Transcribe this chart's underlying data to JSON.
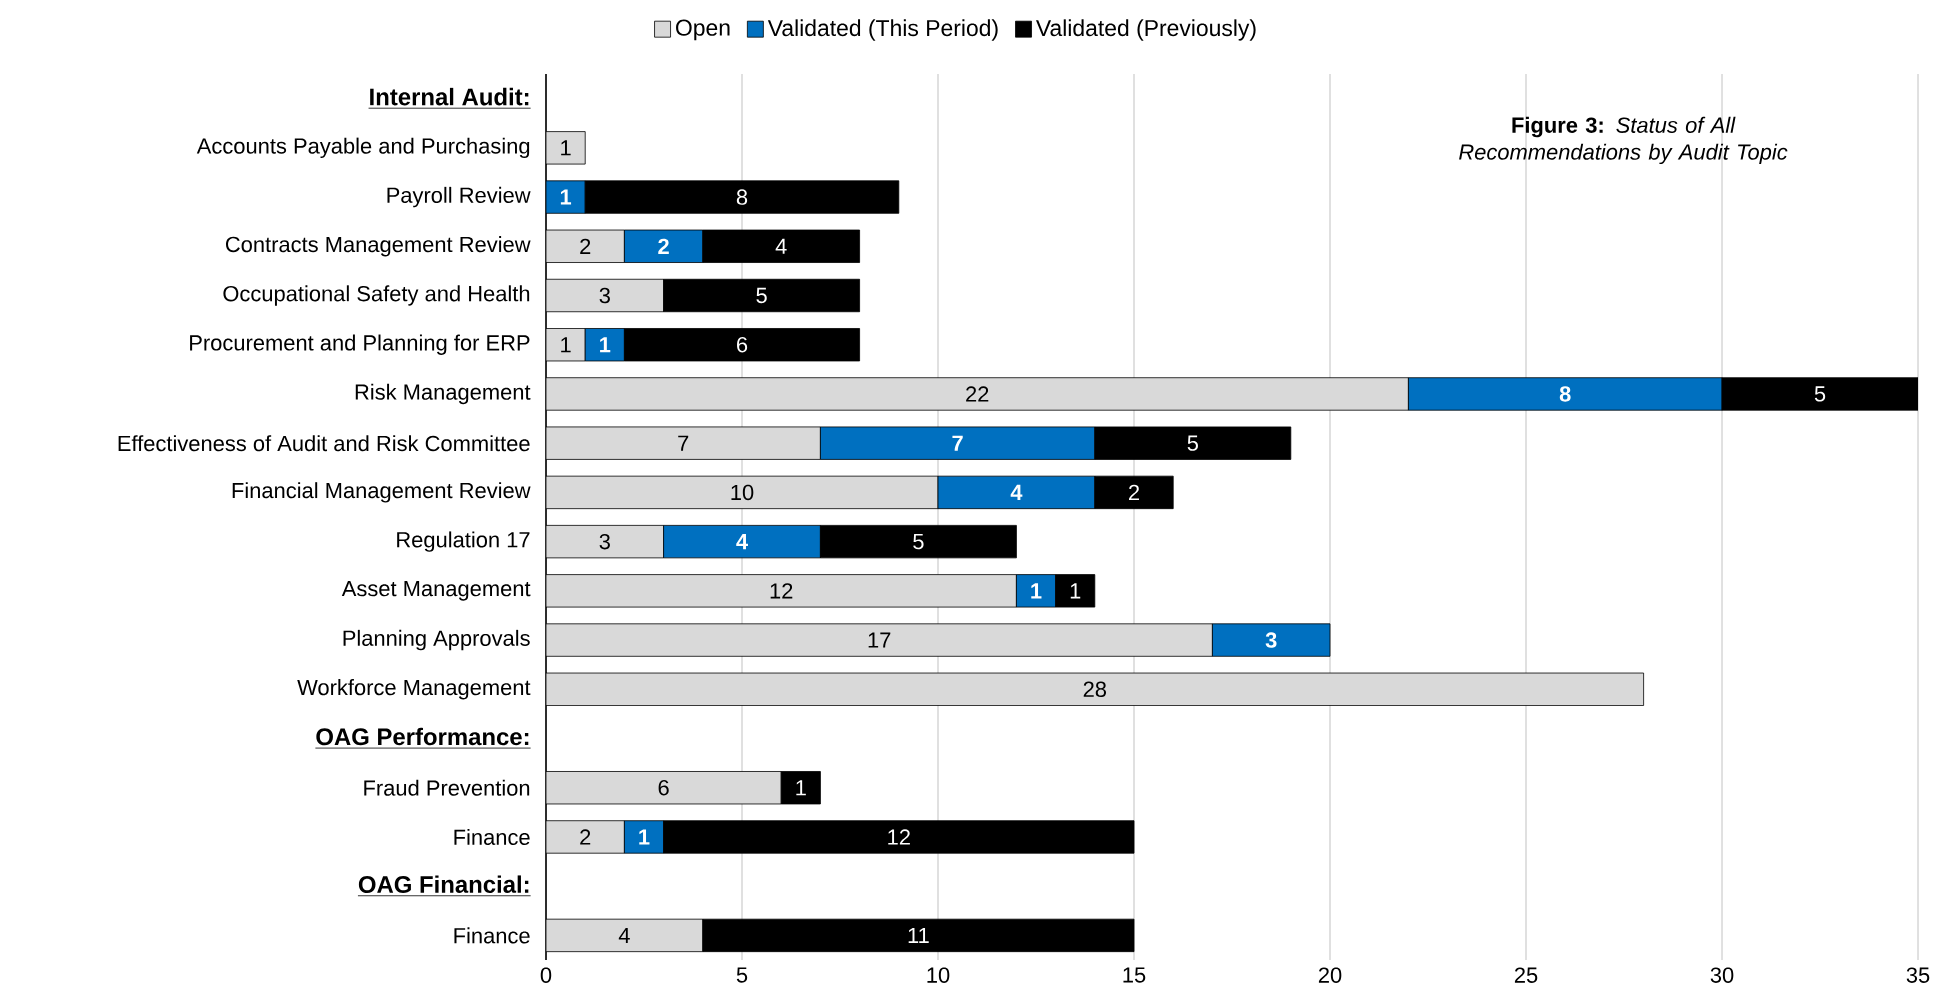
{
  "chart_data": {
    "type": "bar",
    "orientation": "horizontal",
    "stacked": true,
    "title": "**Figure 3:** *Status of All Recommendations by Audit Topic*",
    "categories": [
      "**Internal Audit:**",
      "Accounts Payable and Purchasing",
      "Payroll Review",
      "Contracts Management Review",
      "Occupational Safety and Health",
      "Procurement and Planning for ERP",
      "Risk Management",
      "Effectiveness of Audit and Risk Committee",
      "Financial Management Review",
      "Regulation 17",
      "Asset Management",
      "Planning Approvals",
      "Workforce Management",
      "**OAG Performance:**",
      "Fraud Prevention",
      "Finance",
      "**OAG Financial:**",
      "Finance"
    ],
    "series": [
      {
        "name": "Open",
        "color": "#d9d9d9",
        "values": [
          null,
          1,
          null,
          2,
          3,
          1,
          22,
          7,
          10,
          3,
          12,
          17,
          28,
          null,
          6,
          2,
          null,
          4
        ]
      },
      {
        "name": "Validated (This Period)",
        "color": "#0070c0",
        "values": [
          null,
          null,
          1,
          2,
          null,
          1,
          8,
          7,
          4,
          4,
          1,
          3,
          null,
          null,
          null,
          1,
          null,
          null
        ]
      },
      {
        "name": "Validated (Previously)",
        "color": "#000000",
        "values": [
          null,
          null,
          8,
          4,
          5,
          6,
          5,
          5,
          2,
          5,
          1,
          null,
          null,
          null,
          1,
          12,
          null,
          11
        ]
      }
    ],
    "xlim": [
      0,
      35
    ],
    "xticks": [
      0,
      5,
      10,
      15,
      20,
      25,
      30,
      35
    ],
    "grid": "x",
    "legend": "top",
    "data_labels": true
  }
}
